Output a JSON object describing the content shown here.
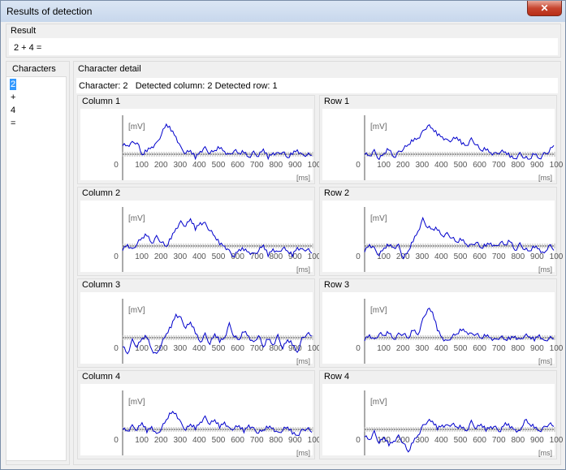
{
  "window": {
    "title": "Results of detection",
    "close_glyph": "✕"
  },
  "result": {
    "label": "Result",
    "expression": "2 + 4 ="
  },
  "characters": {
    "label": "Characters",
    "items": [
      "2",
      "+",
      "4",
      "="
    ],
    "selected_index": 0
  },
  "detail": {
    "label": "Character detail",
    "character_label": "Character:",
    "character_value": "2",
    "column_label": "Detected column:",
    "column_value": "2",
    "row_label": "Detected row:",
    "row_value": "1"
  },
  "plot_common": {
    "y_unit": "[mV]",
    "x_unit": "[ms]",
    "x_ticks": [
      "0",
      "100",
      "200",
      "300",
      "400",
      "500",
      "600",
      "700",
      "800",
      "900",
      "100"
    ],
    "line_color": "#0000cc"
  },
  "plots": [
    {
      "title": "Column 1",
      "shape": [
        0.35,
        0.3,
        0.38,
        0.42,
        -0.05,
        0.15,
        0.25,
        0.35,
        0.7,
        1.0,
        0.85,
        0.6,
        0.2,
        0.05,
        0.1,
        -0.1,
        0.1,
        0.2,
        0.05,
        0.1,
        0.25,
        0.1,
        -0.05,
        0.15,
        0.0,
        0.1,
        -0.1,
        0.05,
        -0.05,
        0.15,
        -0.1,
        0.05,
        0.0,
        0.1,
        -0.15,
        0.05,
        0.15,
        -0.05,
        0.0,
        -0.05
      ]
    },
    {
      "title": "Row 1",
      "shape": [
        0.05,
        -0.05,
        0.1,
        -0.15,
        0.0,
        0.2,
        -0.1,
        0.05,
        0.2,
        0.3,
        0.5,
        0.55,
        0.75,
        1.0,
        0.85,
        0.7,
        0.6,
        0.45,
        0.5,
        0.55,
        0.4,
        0.3,
        0.5,
        0.35,
        0.1,
        0.2,
        0.05,
        0.0,
        0.1,
        0.05,
        -0.05,
        -0.15,
        0.0,
        -0.1,
        -0.2,
        0.05,
        -0.15,
        0.0,
        0.1,
        0.3
      ]
    },
    {
      "title": "Column 2",
      "shape": [
        -0.1,
        0.05,
        -0.15,
        0.1,
        0.25,
        0.4,
        0.1,
        0.3,
        0.15,
        -0.05,
        0.3,
        0.6,
        0.8,
        0.7,
        0.9,
        0.6,
        0.8,
        0.75,
        0.55,
        0.3,
        0.1,
        0.0,
        -0.2,
        -0.35,
        -0.15,
        -0.1,
        -0.2,
        -0.3,
        -0.15,
        0.0,
        -0.3,
        -0.1,
        -0.25,
        -0.05,
        -0.2,
        -0.3,
        -0.05,
        -0.15,
        -0.1,
        -0.25
      ]
    },
    {
      "title": "Row 2",
      "shape": [
        -0.15,
        0.05,
        -0.1,
        -0.3,
        -0.1,
        0.05,
        -0.05,
        0.0,
        -0.4,
        -0.2,
        0.2,
        0.5,
        0.9,
        0.65,
        0.55,
        0.6,
        0.35,
        0.4,
        0.3,
        0.1,
        0.25,
        0.05,
        0.0,
        0.15,
        -0.1,
        0.05,
        0.1,
        -0.05,
        0.15,
        0.0,
        0.2,
        -0.15,
        0.05,
        -0.1,
        -0.2,
        0.0,
        -0.1,
        -0.3,
        0.05,
        -0.15
      ]
    },
    {
      "title": "Column 3",
      "shape": [
        -0.25,
        -0.55,
        -0.1,
        -0.3,
        -0.05,
        0.05,
        -0.4,
        -0.6,
        -0.2,
        0.1,
        0.4,
        0.8,
        0.65,
        0.35,
        0.5,
        0.2,
        -0.15,
        0.1,
        -0.2,
        0.1,
        -0.1,
        0.0,
        0.45,
        0.05,
        -0.1,
        0.25,
        0.05,
        -0.2,
        0.1,
        -0.35,
        0.0,
        -0.25,
        0.05,
        -0.35,
        -0.1,
        -0.2,
        -0.5,
        -0.05,
        0.15,
        0.05
      ]
    },
    {
      "title": "Row 3",
      "shape": [
        -0.05,
        0.1,
        -0.1,
        0.15,
        0.05,
        0.2,
        -0.05,
        0.1,
        0.15,
        -0.05,
        0.3,
        0.1,
        0.6,
        1.0,
        0.85,
        0.3,
        0.0,
        -0.15,
        0.05,
        0.1,
        0.3,
        0.2,
        0.1,
        0.15,
        -0.05,
        0.1,
        0.0,
        -0.1,
        0.05,
        -0.1,
        0.0,
        0.05,
        -0.1,
        0.1,
        0.0,
        -0.05,
        0.1,
        -0.15,
        0.0,
        -0.05
      ]
    },
    {
      "title": "Column 4",
      "shape": [
        0.05,
        -0.05,
        0.1,
        0.0,
        0.2,
        -0.05,
        0.1,
        -0.2,
        0.05,
        0.3,
        0.6,
        0.55,
        0.2,
        0.0,
        0.15,
        0.05,
        0.25,
        0.4,
        0.2,
        0.3,
        0.1,
        0.25,
        0.0,
        0.05,
        0.1,
        -0.05,
        0.15,
        0.0,
        -0.1,
        -0.05,
        0.1,
        0.05,
        -0.15,
        0.0,
        0.05,
        -0.1,
        -0.2,
        -0.05,
        0.05,
        -0.1
      ]
    },
    {
      "title": "Row 4",
      "shape": [
        -0.2,
        -0.35,
        -0.1,
        -0.45,
        -0.3,
        -0.5,
        -0.4,
        -0.25,
        -0.45,
        -0.8,
        -0.4,
        -0.2,
        0.1,
        0.3,
        0.25,
        0.05,
        0.15,
        0.1,
        0.2,
        0.05,
        0.1,
        -0.05,
        0.25,
        0.05,
        0.15,
        0.0,
        0.1,
        0.05,
        -0.05,
        0.2,
        0.1,
        0.0,
        -0.1,
        0.35,
        0.15,
        0.1,
        -0.05,
        0.05,
        0.2,
        0.1
      ]
    }
  ]
}
